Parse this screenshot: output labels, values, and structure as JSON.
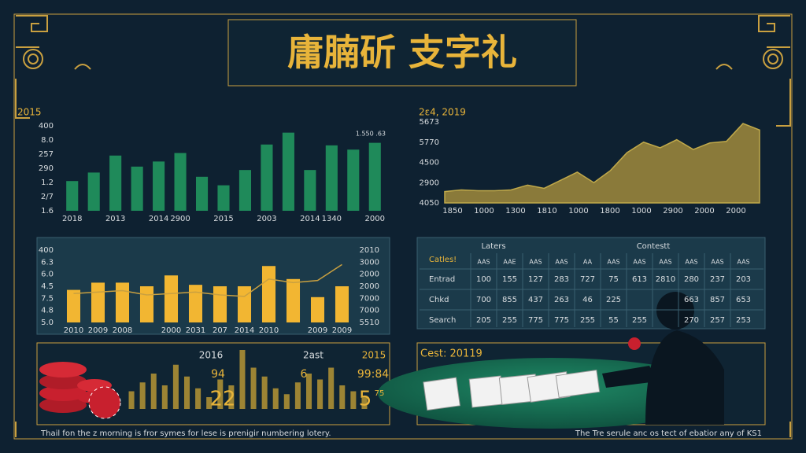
{
  "header": {
    "title": "庸腩斫 支字礼"
  },
  "chart_data": [
    {
      "type": "bar",
      "title": "2015",
      "note": "1.550 .63",
      "color": "#1f8a5a",
      "ylim": [
        0,
        100
      ],
      "yaxis_labels": [
        "400",
        "8.0",
        "257",
        "290",
        "1.2",
        "2/7",
        "1.6"
      ],
      "categories": [
        "2018",
        null,
        "2013",
        null,
        "2014",
        "2900",
        null,
        "2015",
        null,
        "2003",
        null,
        "2014",
        "1340",
        null,
        "2000"
      ],
      "values": [
        35,
        45,
        65,
        52,
        58,
        68,
        40,
        30,
        48,
        78,
        92,
        48,
        77,
        72,
        80
      ]
    },
    {
      "type": "area",
      "title": "2ε4, 2019",
      "color": "#8a7a3a",
      "ylim": [
        0,
        100
      ],
      "yaxis_labels": [
        "5673",
        "5770",
        "4500",
        "2900",
        "4050"
      ],
      "categories": [
        "1850",
        null,
        "1000",
        null,
        "1300",
        null,
        "1810",
        null,
        "1000",
        null,
        "1800",
        null,
        "1000",
        null,
        "2900",
        null,
        "2000",
        null,
        "2000",
        null
      ],
      "values": [
        14,
        16,
        15,
        15,
        16,
        22,
        18,
        28,
        38,
        25,
        40,
        62,
        75,
        68,
        78,
        66,
        74,
        76,
        98,
        90
      ]
    },
    {
      "type": "bar-line",
      "color": "#f2b632",
      "line_color": "#c9a040",
      "ylim": [
        0,
        100
      ],
      "yaxis_labels": [
        "400",
        "6.3",
        "6.0",
        "4.5",
        "7.5",
        "4.8",
        "5.0"
      ],
      "y2axis_labels": [
        "2010",
        "3000",
        "2000",
        "2000",
        "7000",
        "7000",
        "5510"
      ],
      "categories": [
        "2010",
        "2009",
        "2008",
        null,
        "2000",
        "2031",
        "207",
        "2014",
        "2010",
        null,
        "2009",
        "2009"
      ],
      "values": [
        45,
        55,
        55,
        50,
        65,
        52,
        50,
        50,
        78,
        60,
        35,
        50
      ],
      "line_values": [
        40,
        42,
        44,
        38,
        40,
        42,
        38,
        36,
        60,
        55,
        58,
        80
      ]
    },
    {
      "type": "mini-bar",
      "color": "#9c8434",
      "ylim": [
        0,
        100
      ],
      "values": [
        30,
        45,
        60,
        40,
        75,
        55,
        35,
        20,
        50,
        40,
        100,
        70,
        55,
        35,
        25,
        45,
        60,
        50,
        70,
        40,
        30,
        20
      ]
    }
  ],
  "table": {
    "header_left": "Laters",
    "header_right": "Contestt",
    "corner": "Catles!",
    "columns": [
      "AAS",
      "AAE",
      "AAS",
      "AAS",
      "AA",
      "AAS",
      "AAS",
      "AAS",
      "AAS",
      "AAS",
      "AAS"
    ],
    "rows": [
      {
        "label": "Entrad",
        "cells": [
          "100",
          "155",
          "127",
          "283",
          "727",
          "75",
          "613",
          "2810",
          "280",
          "237",
          "203"
        ]
      },
      {
        "label": "Chkd",
        "cells": [
          "700",
          "855",
          "437",
          "263",
          "46",
          "225",
          "",
          "",
          "663",
          "857",
          "653"
        ]
      },
      {
        "label": "Search",
        "cells": [
          "205",
          "255",
          "775",
          "775",
          "255",
          "55",
          "255",
          "",
          "270",
          "257",
          "253"
        ]
      }
    ]
  },
  "bottom_left": {
    "labels": [
      "2016",
      "2ast",
      "2015"
    ],
    "numbers": [
      "94",
      "6",
      "99:84",
      "22",
      "5",
      "75"
    ],
    "caption": "Thail fon the z morning is fror symes for lese is prenigir numbering lotery."
  },
  "bottom_right": {
    "title": "Cest: 20119",
    "caption": "The Tre serule anc os tect of ebatior any of KS1"
  }
}
